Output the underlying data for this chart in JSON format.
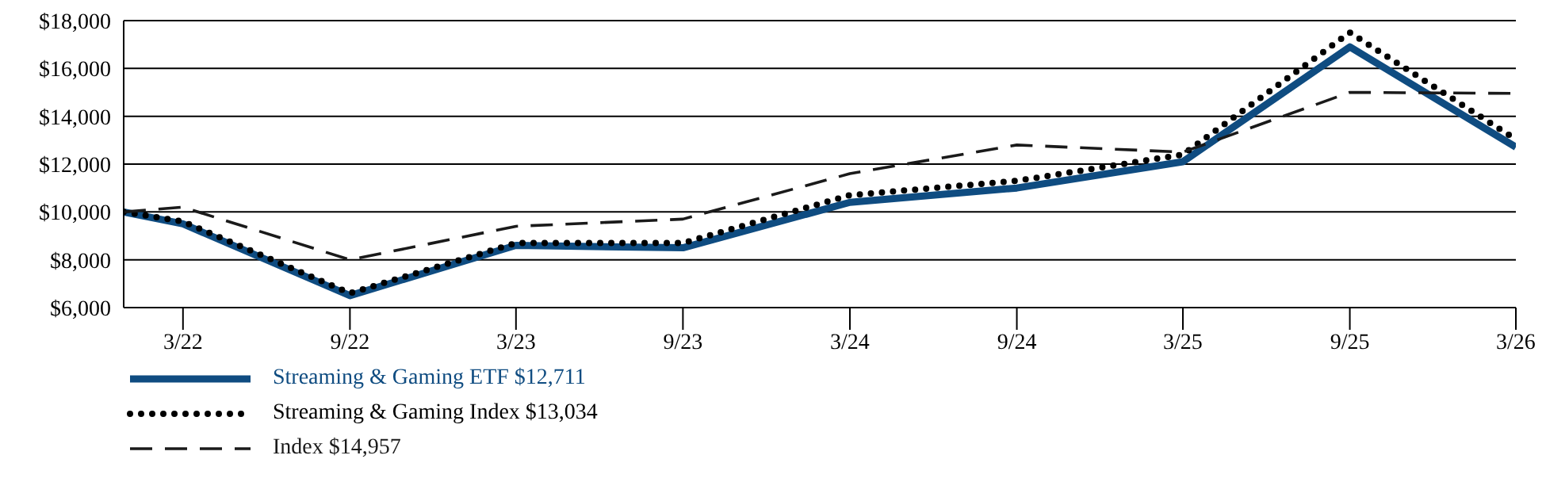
{
  "chart_data": {
    "type": "line",
    "x": [
      "2022-01-25",
      "2022-03-31",
      "2022-09-30",
      "2023-03-31",
      "2023-09-30",
      "2024-03-31",
      "2024-09-30",
      "2025-03-31",
      "2025-09-30",
      "2026-03-31"
    ],
    "series": [
      {
        "name": "Streaming & Gaming ETF $12,711",
        "color": "#0f4c81",
        "line_style": "solid",
        "values": [
          10000,
          9500,
          6500,
          8600,
          8500,
          10400,
          11000,
          12100,
          16900,
          12711
        ]
      },
      {
        "name": "Streaming & Gaming Index $13,034",
        "color": "#000000",
        "line_style": "dotted",
        "values": [
          10000,
          9600,
          6600,
          8700,
          8700,
          10700,
          11300,
          12400,
          17500,
          13034
        ]
      },
      {
        "name": "Index $14,957",
        "color": "#1a1a1a",
        "line_style": "dashed",
        "values": [
          10000,
          10200,
          8000,
          9400,
          9700,
          11600,
          12800,
          12500,
          15000,
          14957
        ]
      }
    ],
    "xlim": [
      "2022-01-25",
      "2026-03-31"
    ],
    "xticks": [
      {
        "value": "2022-03-31",
        "label": "3/22"
      },
      {
        "value": "2022-09-30",
        "label": "9/22"
      },
      {
        "value": "2023-03-31",
        "label": "3/23"
      },
      {
        "value": "2023-09-30",
        "label": "9/23"
      },
      {
        "value": "2024-03-31",
        "label": "3/24"
      },
      {
        "value": "2024-09-30",
        "label": "9/24"
      },
      {
        "value": "2025-03-31",
        "label": "3/25"
      },
      {
        "value": "2025-09-30",
        "label": "9/25"
      },
      {
        "value": "2026-03-31",
        "label": "3/26"
      }
    ],
    "ylim": [
      6000,
      18000
    ],
    "yticks": [
      {
        "value": 6000,
        "label": "$6,000"
      },
      {
        "value": 8000,
        "label": "$8,000"
      },
      {
        "value": 10000,
        "label": "$10,000"
      },
      {
        "value": 12000,
        "label": "$12,000"
      },
      {
        "value": 14000,
        "label": "$14,000"
      },
      {
        "value": 16000,
        "label": "$16,000"
      },
      {
        "value": 18000,
        "label": "$18,000"
      }
    ],
    "grid": "y",
    "legend": "bottom",
    "marker": "none"
  }
}
